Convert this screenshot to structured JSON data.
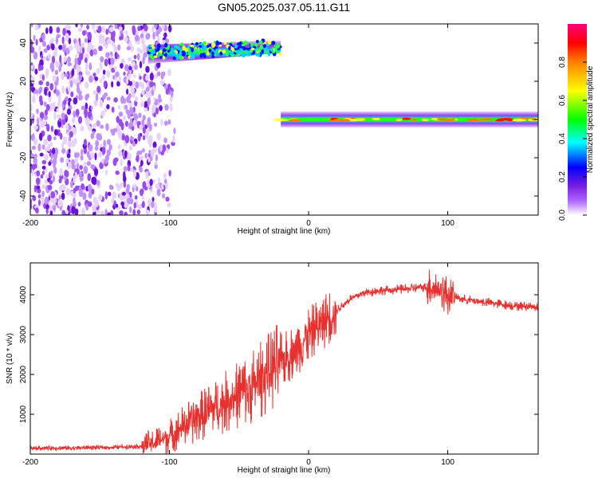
{
  "chart_data": [
    {
      "type": "heatmap",
      "title": "GN05.2025.037.05.11.G11",
      "xlabel": "Height of straight line (km)",
      "ylabel": "Frequency (Hz)",
      "xlim": [
        -200,
        165
      ],
      "ylim": [
        -50,
        50
      ],
      "xticks": [
        -200,
        -100,
        0,
        100
      ],
      "yticks": [
        -40,
        -20,
        0,
        20,
        40
      ],
      "colorbar": {
        "label": "Normalized spectral amplitude",
        "range": [
          0,
          1
        ],
        "ticks": [
          "0.0",
          "0.2",
          "0.4",
          "0.6",
          "0.8"
        ],
        "colormap": [
          "#ffffff",
          "#8a2be2",
          "#0000ff",
          "#00ffff",
          "#00ff00",
          "#ffff00",
          "#ff8000",
          "#ff0000",
          "#ff0080"
        ]
      },
      "features": [
        {
          "name": "noise region",
          "x_range": [
            -200,
            -110
          ],
          "freq_range": [
            -50,
            50
          ],
          "amplitude": 0.1
        },
        {
          "name": "upper band",
          "x_range": [
            -115,
            -20
          ],
          "freq_start": 35,
          "freq_end": 38,
          "amplitude": 0.45
        },
        {
          "name": "zero band",
          "x_range": [
            -20,
            165
          ],
          "freq": 0,
          "amplitude": 0.5
        }
      ]
    },
    {
      "type": "line",
      "xlabel": "Height of straight line (km)",
      "ylabel": "SNR (10 * v/v)",
      "xlim": [
        -200,
        165
      ],
      "ylim": [
        0,
        4800
      ],
      "xticks": [
        -200,
        -100,
        0,
        100
      ],
      "yticks": [
        1000,
        2000,
        3000,
        4000
      ],
      "color": "#e8302e",
      "series": [
        {
          "x": [
            -200,
            -180,
            -160,
            -140,
            -120,
            -110,
            -100,
            -90,
            -80,
            -70,
            -60,
            -50,
            -40,
            -30,
            -20,
            -10,
            0,
            10,
            20,
            30,
            40,
            50,
            60,
            70,
            80,
            90,
            95,
            100,
            110,
            120,
            130,
            140,
            150,
            165
          ],
          "y": [
            150,
            150,
            160,
            170,
            200,
            300,
            450,
            700,
            900,
            1100,
            1300,
            1500,
            1700,
            2000,
            2300,
            2600,
            3000,
            3300,
            3600,
            3900,
            4050,
            4100,
            4120,
            4150,
            4180,
            4200,
            4100,
            4000,
            3900,
            3850,
            3800,
            3750,
            3720,
            3700
          ]
        }
      ]
    }
  ]
}
